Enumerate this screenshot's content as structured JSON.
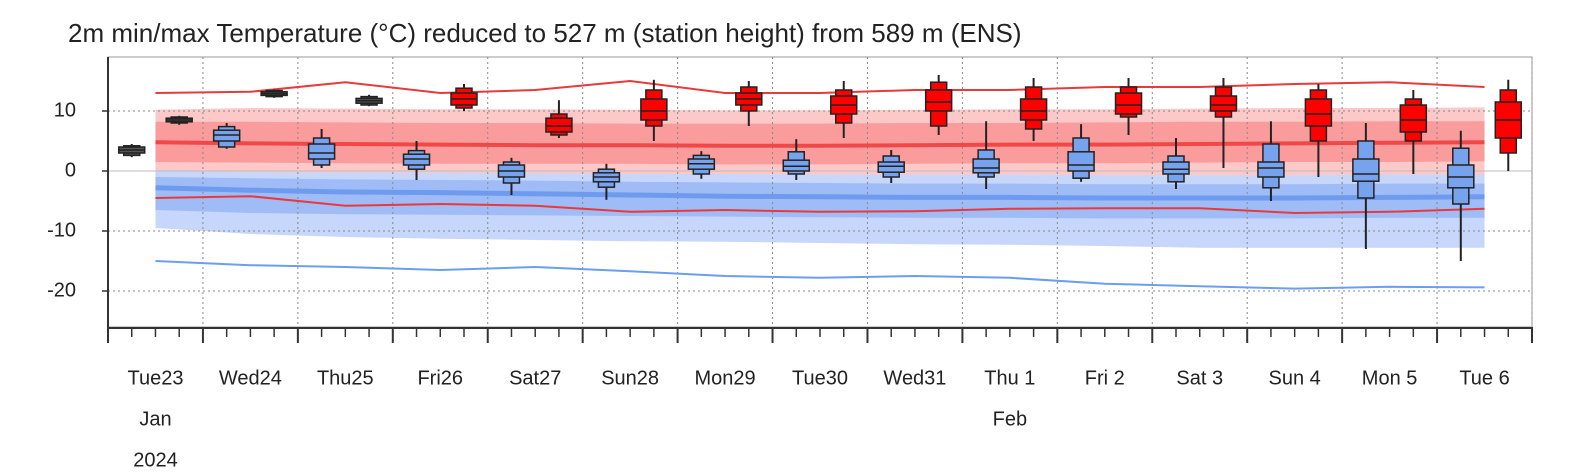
{
  "chart_data": {
    "type": "meteogram",
    "title": "2m min/max Temperature (°C) reduced to 527 m (station height) from 589 m (ENS)",
    "xlim": [
      0,
      360
    ],
    "xticks": [
      0,
      24,
      48,
      72,
      96,
      120,
      144,
      168,
      192,
      216,
      240,
      264,
      288,
      312,
      336,
      360
    ],
    "ylim": [
      -26,
      19
    ],
    "yticks": [
      -20,
      -10,
      0,
      10
    ],
    "grid": true,
    "day_labels": {
      "x": [
        12,
        36,
        60,
        84,
        108,
        132,
        156,
        180,
        204,
        228,
        252,
        276,
        300,
        324,
        348
      ],
      "labels": [
        "Tue23",
        "Wed24",
        "Thu25",
        "Fri26",
        "Sat27",
        "Sun28",
        "Mon29",
        "Tue30",
        "Wed31",
        "Thu 1",
        "Fri 2",
        "Sat 3",
        "Sun 4",
        "Mon 5",
        "Tue 6"
      ],
      "colors": [
        "#222",
        "#222",
        "#222",
        "#222",
        "#222",
        "#e00000",
        "#222",
        "#222",
        "#222",
        "#222",
        "#222",
        "#222",
        "#e00000",
        "#222",
        "#222"
      ]
    },
    "month_labels": {
      "x": [
        12,
        228
      ],
      "labels": [
        "Jan",
        "Feb"
      ]
    },
    "year_labels": {
      "x": [
        12
      ],
      "labels": [
        "2024"
      ]
    },
    "band_x": [
      12,
      36,
      60,
      84,
      108,
      132,
      156,
      180,
      204,
      228,
      252,
      276,
      300,
      324,
      348
    ],
    "bands": [
      {
        "color": "#fdc8c8",
        "low": [
          -1.5,
          -1.5,
          -1.5,
          -1.6,
          -1.6,
          -1.6,
          -1.6,
          -1.6,
          -1.5,
          -1.5,
          -1.5,
          -1.4,
          -1.4,
          -1.3,
          -1.3
        ],
        "high": [
          10.2,
          10.5,
          10.4,
          10.3,
          10.3,
          10.2,
          10.1,
          10.1,
          10.2,
          10.3,
          10.3,
          10.4,
          10.5,
          10.5,
          10.6
        ]
      },
      {
        "color": "#fb9c9c",
        "low": [
          1.5,
          1.4,
          1.3,
          1.2,
          1.2,
          1.2,
          1.1,
          1.1,
          1.2,
          1.3,
          1.3,
          1.4,
          1.5,
          1.5,
          1.6
        ],
        "high": [
          8.2,
          8.2,
          8.1,
          8.0,
          8.0,
          7.9,
          7.9,
          7.9,
          8.0,
          8.0,
          8.1,
          8.2,
          8.2,
          8.3,
          8.3
        ]
      },
      {
        "color": "#c6d7fb",
        "low": [
          -9.5,
          -10.5,
          -11.0,
          -11.3,
          -11.5,
          -11.7,
          -11.8,
          -12.0,
          -12.2,
          -12.3,
          -12.5,
          -12.8,
          -12.8,
          -12.8,
          -12.8
        ],
        "high": [
          0.0,
          -0.2,
          -0.3,
          -0.3,
          -0.4,
          -0.5,
          -0.5,
          -0.6,
          -0.6,
          -0.6,
          -0.7,
          -0.7,
          -0.7,
          -0.6,
          -0.6
        ]
      },
      {
        "color": "#9fbcf6",
        "low": [
          -6.5,
          -7.0,
          -7.2,
          -7.3,
          -7.4,
          -7.5,
          -7.6,
          -7.7,
          -7.8,
          -7.8,
          -7.9,
          -7.9,
          -7.9,
          -7.8,
          -7.8
        ],
        "high": [
          -1.0,
          -1.2,
          -1.4,
          -1.5,
          -1.6,
          -1.8,
          -1.9,
          -2.0,
          -2.1,
          -2.1,
          -2.2,
          -2.2,
          -2.2,
          -2.1,
          -2.1
        ]
      }
    ],
    "lines": [
      {
        "color": "#f04848",
        "width": 4,
        "values": [
          4.8,
          4.6,
          4.5,
          4.4,
          4.3,
          4.3,
          4.2,
          4.2,
          4.3,
          4.4,
          4.4,
          4.5,
          4.6,
          4.7,
          4.8
        ]
      },
      {
        "color": "#6e9bf0",
        "width": 5,
        "values": [
          -2.8,
          -3.2,
          -3.5,
          -3.6,
          -3.8,
          -4.0,
          -4.2,
          -4.3,
          -4.4,
          -4.4,
          -4.5,
          -4.5,
          -4.5,
          -4.4,
          -4.3
        ]
      },
      {
        "color": "#e83a3a",
        "width": 2,
        "values": [
          13,
          13.2,
          14.8,
          13,
          13.5,
          15,
          13,
          13,
          13.5,
          13.5,
          14,
          14,
          14.5,
          14.8,
          14
        ]
      },
      {
        "color": "#e83a3a",
        "width": 2,
        "values": [
          -4.5,
          -4.2,
          -5.8,
          -5.5,
          -5.8,
          -6.8,
          -6.5,
          -6.8,
          -6.7,
          -6.3,
          -6.2,
          -6.2,
          -7.0,
          -6.8,
          -6.3
        ]
      },
      {
        "color": "#6b9ef0",
        "width": 2,
        "values": [
          -15,
          -15.7,
          -16,
          -16.5,
          -16,
          -16.7,
          -17.5,
          -17.8,
          -17.5,
          -17.8,
          -18.8,
          -19.2,
          -19.6,
          -19.3,
          -19.4
        ]
      }
    ],
    "boxes": [
      {
        "color": "#555555",
        "x": [
          6,
          18,
          42,
          66
        ],
        "values": [
          [
            2.3,
            2.6,
            3,
            3.5,
            4,
            4.2,
            4.5
          ],
          [
            7.7,
            8,
            8.2,
            8.5,
            8.8,
            9,
            9.2
          ],
          [
            12.2,
            12.4,
            12.6,
            12.9,
            13.2,
            13.4,
            13.6
          ],
          [
            10.8,
            11,
            11.3,
            11.7,
            12.1,
            12.4,
            12.7
          ]
        ]
      },
      {
        "color": "#77a3ee",
        "x": [
          30,
          54,
          78,
          102,
          126,
          150,
          174,
          198,
          222,
          246,
          270,
          294,
          318,
          342
        ],
        "values": [
          [
            3.7,
            4,
            5,
            6,
            6.8,
            7.4,
            8
          ],
          [
            0.5,
            1,
            2,
            3,
            4.5,
            5.5,
            7
          ],
          [
            -1.5,
            0.3,
            1,
            2,
            2.8,
            3.4,
            5
          ],
          [
            -4,
            -2,
            -1,
            0,
            1,
            1.5,
            2.2
          ],
          [
            -4.8,
            -2.7,
            -1.8,
            -1,
            -0.3,
            0.3,
            1.2
          ],
          [
            -1.3,
            -0.5,
            0.3,
            1.2,
            2,
            2.6,
            3.3
          ],
          [
            -1.5,
            -0.5,
            0,
            0.8,
            1.8,
            3.2,
            5.3
          ],
          [
            -2,
            -1,
            -0.2,
            0.8,
            1.5,
            2.5,
            3.5
          ],
          [
            -3,
            -1,
            -0.3,
            0.5,
            2,
            3.5,
            8.3
          ],
          [
            -1.8,
            -1.2,
            0,
            1,
            3.2,
            5.5,
            7.8
          ],
          [
            -3,
            -1.8,
            -0.5,
            0.3,
            1.5,
            2.5,
            5.5
          ],
          [
            -5,
            -2.8,
            -1,
            0.5,
            1.5,
            4.5,
            8.3
          ],
          [
            -13,
            -4.5,
            -1.7,
            -0.5,
            2,
            5,
            8
          ],
          [
            -15,
            -5.5,
            -2.8,
            -1,
            1,
            3.8,
            6.7
          ]
        ]
      },
      {
        "color": "#ff0000",
        "x": [
          90,
          114,
          138,
          162,
          186,
          210,
          234,
          258,
          282,
          306,
          330,
          354
        ],
        "values": [
          [
            10,
            10.5,
            11,
            12,
            13,
            13.8,
            14.5
          ],
          [
            5.5,
            6,
            6.5,
            7.5,
            8.8,
            9.5,
            11.8
          ],
          [
            5,
            7.5,
            8.5,
            10,
            12,
            13.5,
            15.2
          ],
          [
            7.5,
            10,
            11,
            12,
            13,
            14,
            15
          ],
          [
            5.5,
            8,
            9.5,
            11,
            12.5,
            13.5,
            15
          ],
          [
            6,
            7.5,
            10,
            11.5,
            13.5,
            14.8,
            16
          ],
          [
            5,
            7,
            8.5,
            10,
            12,
            14,
            15.5
          ],
          [
            6,
            9,
            9.5,
            11,
            13,
            14,
            15.5
          ],
          [
            0.5,
            9,
            10,
            11,
            12.5,
            14,
            15.5
          ],
          [
            -1,
            5,
            7.5,
            9.5,
            12,
            13.5,
            14.5
          ],
          [
            -0.5,
            5,
            6.5,
            8.5,
            11,
            12,
            13.5
          ],
          [
            0,
            3,
            5.5,
            8.5,
            11.5,
            13.5,
            15.2
          ]
        ]
      }
    ]
  }
}
